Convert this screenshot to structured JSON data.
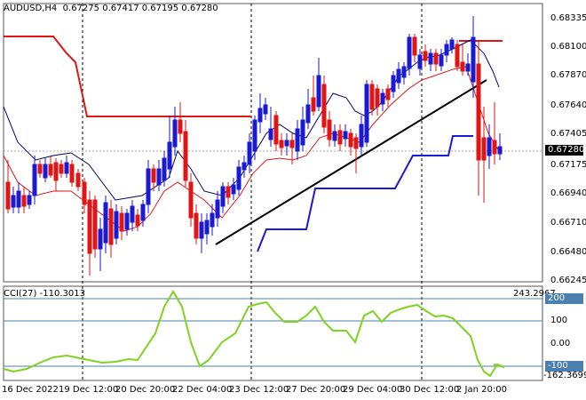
{
  "header": {
    "symbol": "AUDUSD,H4",
    "open": "0.67275",
    "high": "0.67417",
    "low": "0.67195",
    "close": "0.67280"
  },
  "price_axis": {
    "ticks": [
      "0.68335",
      "0.68100",
      "0.67870",
      "0.67640",
      "0.67405",
      "0.67175",
      "0.66940",
      "0.66710",
      "0.66480",
      "0.66245"
    ],
    "current_price": "0.67280"
  },
  "cci_panel": {
    "label": "CCI(27) -110.3013",
    "max_label": "243.2967",
    "min_label": "-162.3699",
    "ticks": [
      "200",
      "100",
      "0.00",
      "-100"
    ],
    "highlight_ticks": [
      "200",
      "-100"
    ]
  },
  "time_axis": {
    "labels": [
      "16 Dec 2022",
      "19 Dec 12:00",
      "20 Dec 20:00",
      "22 Dec 04:00",
      "23 Dec 12:00",
      "27 Dec 20:00",
      "29 Dec 04:00",
      "30 Dec 12:00",
      "2 Jan 20:00"
    ]
  },
  "colors": {
    "bull_candle": "#1a1ad0",
    "bear_candle": "#e01515",
    "ma_fast": "#e01515",
    "ma_slow": "#000066",
    "resistance": "#e01515",
    "support": "#1a1ad0",
    "trendline": "#000000",
    "cci_line": "#7ed321",
    "level_line": "#4a7fb0"
  }
}
